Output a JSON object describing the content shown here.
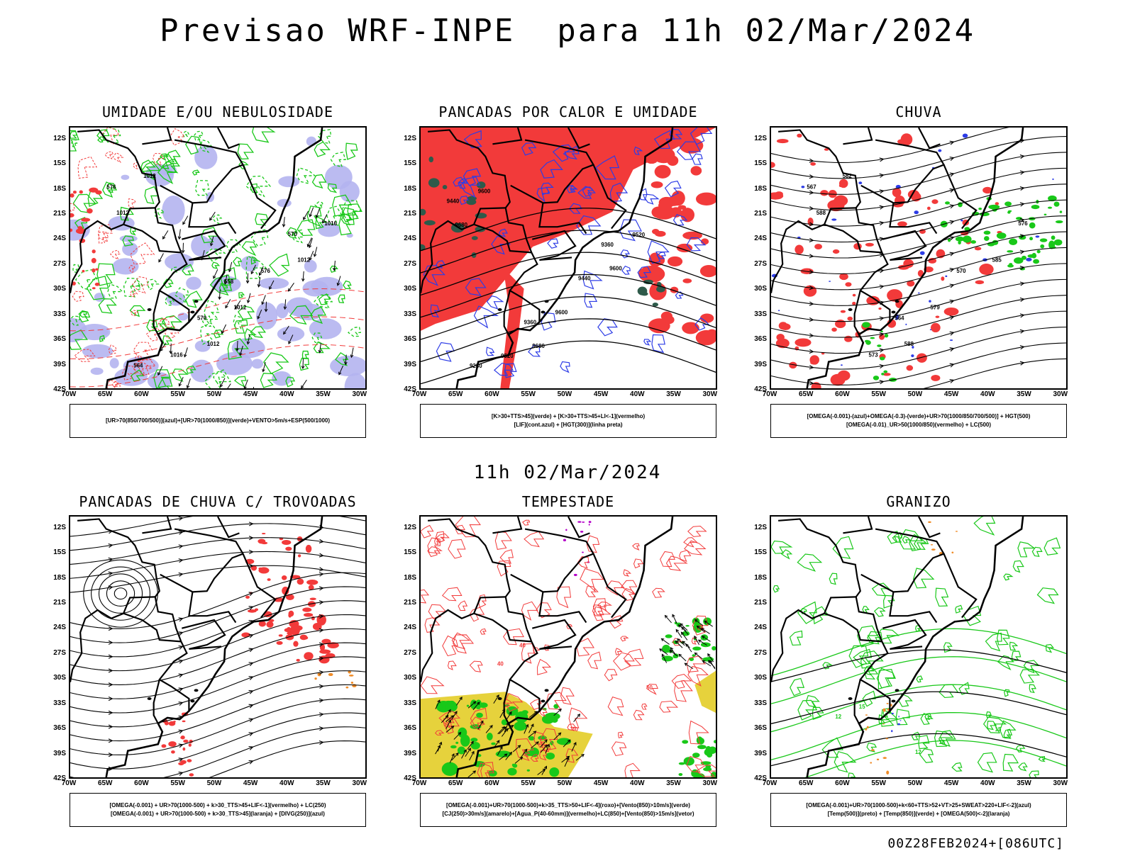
{
  "title": "Previsao WRF-INPE  para 11h 02/Mar/2024",
  "subtitle": "11h 02/Mar/2024",
  "footer": "00Z28FEB2024+[086UTC]",
  "lat_ticks": [
    "12S",
    "15S",
    "18S",
    "21S",
    "24S",
    "27S",
    "30S",
    "33S",
    "36S",
    "39S",
    "42S"
  ],
  "lon_ticks": [
    "70W",
    "65W",
    "60W",
    "55W",
    "50W",
    "45W",
    "40W",
    "35W",
    "30W"
  ],
  "colors": {
    "red": "#f23a3a",
    "green": "#19c819",
    "blue": "#2d3ce6",
    "lavender": "#b4b4f0",
    "yellow": "#e6d23c",
    "orange": "#f08c28",
    "purple": "#b400c8",
    "darkgreen": "#2e5a4a",
    "black": "#000000"
  },
  "panels": [
    {
      "title": "UMIDADE E/OU NEBULOSIDADE",
      "legend": [
        "[UR>70(850/700/500)](azul)+[UR>70(1000/850)](verde)+VENTO>5m/s+ESP(500/1000)"
      ],
      "labels": [
        "1012",
        "1012",
        "1012",
        "1012",
        "1012",
        "1016",
        "1016",
        "576",
        "576",
        "570",
        "570",
        "564",
        "558"
      ]
    },
    {
      "title": "PANCADAS POR CALOR E UMIDADE",
      "legend": [
        "[K>30+TTS>45](verde) + [K>30+TTS>45+LI<-1](vermelho)",
        "[LIF](cont.azul) + [HGT(300)](linha preta)"
      ],
      "labels": [
        "9680",
        "9680",
        "9600",
        "9600",
        "9600",
        "9520",
        "9520",
        "9440",
        "9440",
        "9360",
        "9360",
        "9280"
      ]
    },
    {
      "title": "CHUVA",
      "legend": [
        "[OMEGA(-0.001)-(azul)+OMEGA(-0.3)-(verde)+UR>70(1000/850/700/500)] + HGT(500)",
        "[OMEGA(-0.01)_UR>50(1000/850)(vermelho) + LC(500)"
      ],
      "labels": [
        "588",
        "588",
        "585",
        "582",
        "579",
        "576",
        "573",
        "570",
        "567",
        "564"
      ]
    },
    {
      "title": "PANCADAS DE CHUVA C/ TROVOADAS",
      "legend": [
        "[OMEGA(-0.001) + UR>70(1000-500) + k>30_TTS>45+LIF<-1](vermelho) + LC(250)",
        "[OMEGA(-0.001) + UR>70(1000-500) + k>30_TTS>45](laranja) + [DIVG(250)](azul)"
      ],
      "labels": []
    },
    {
      "title": "TEMPESTADE",
      "legend": [
        "[OMEGA(-0.001)+UR>70(1000-500)+k>35_TTS>50+LIF<-4](roxo)+[Vento(850)>10m/s](verde)",
        "[CJ(250)>30m/s](amarelo)+[Agua_P(40-60mm)](vermelho)+LC(850)+[Vento(850)>15m/s](vetor)"
      ],
      "labels": [
        "40",
        "40",
        "50",
        "40"
      ]
    },
    {
      "title": "GRANIZO",
      "legend": [
        "[OMEGA(-0.001)+UR>70(1000-500)+k<60+TTS>52+VT>25+SWEAT>220+LIF<-2](azul)",
        "[Temp(500)](preto) + [Temp(850)](verde) + [OMEGA(500)<-2](laranja)"
      ],
      "labels": [
        "12",
        "12",
        "15",
        "15",
        "18"
      ]
    }
  ]
}
